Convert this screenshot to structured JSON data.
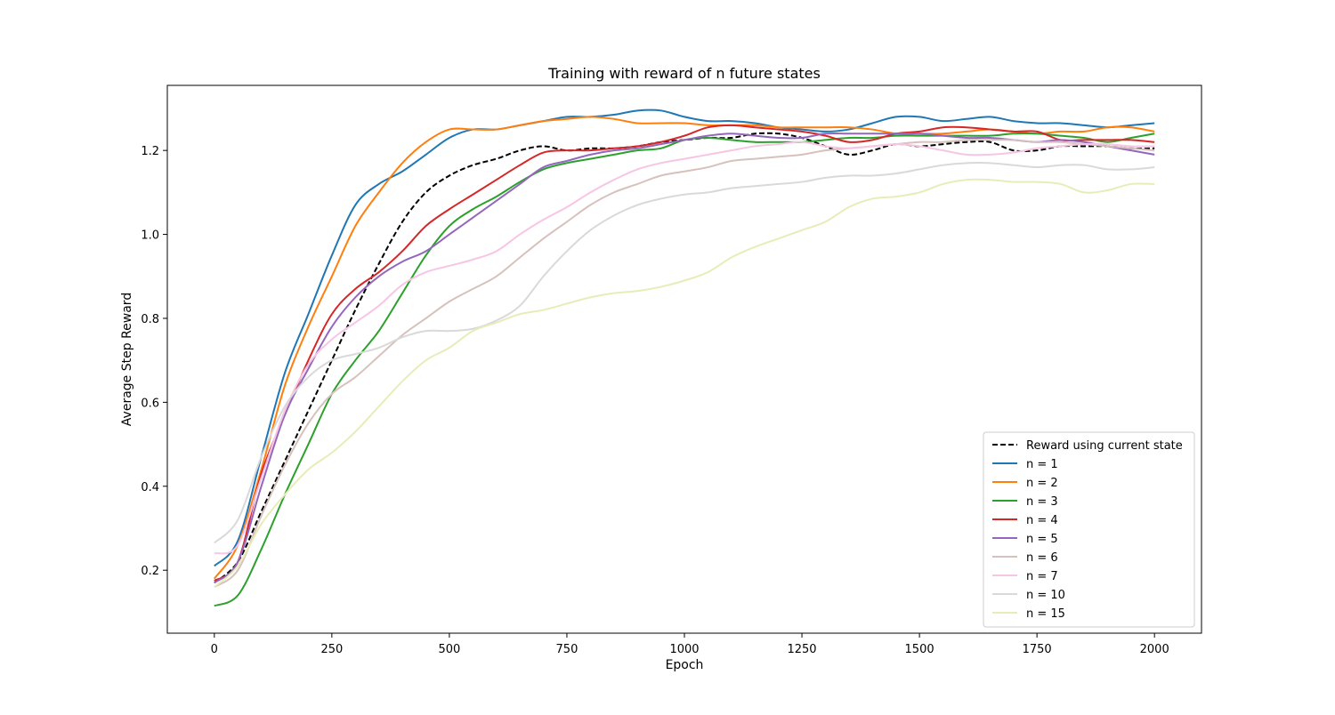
{
  "chart_data": {
    "type": "line",
    "title": "Training with reward of n future states",
    "xlabel": "Epoch",
    "ylabel": "Average Step Reward",
    "xlim": [
      -100,
      2100
    ],
    "ylim": [
      0.05,
      1.355
    ],
    "xticks": [
      0,
      250,
      500,
      750,
      1000,
      1250,
      1500,
      1750,
      2000
    ],
    "yticks": [
      0.2,
      0.4,
      0.6,
      0.8,
      1.0,
      1.2
    ],
    "ytick_labels": [
      "0.2",
      "0.4",
      "0.6",
      "0.8",
      "1.0",
      "1.2"
    ],
    "grid": false,
    "legend_position": "lower right",
    "x": [
      0,
      50,
      100,
      150,
      200,
      250,
      300,
      350,
      400,
      450,
      500,
      550,
      600,
      650,
      700,
      750,
      800,
      850,
      900,
      950,
      1000,
      1050,
      1100,
      1150,
      1200,
      1250,
      1300,
      1350,
      1400,
      1450,
      1500,
      1550,
      1600,
      1650,
      1700,
      1750,
      1800,
      1850,
      1900,
      1950,
      2000
    ],
    "series": [
      {
        "name": "Reward using current state",
        "color": "#000000",
        "dashed": true,
        "values": [
          0.17,
          0.22,
          0.34,
          0.46,
          0.58,
          0.7,
          0.82,
          0.93,
          1.03,
          1.1,
          1.14,
          1.165,
          1.18,
          1.2,
          1.21,
          1.2,
          1.205,
          1.205,
          1.21,
          1.22,
          1.225,
          1.23,
          1.23,
          1.24,
          1.24,
          1.23,
          1.21,
          1.19,
          1.2,
          1.215,
          1.21,
          1.215,
          1.22,
          1.22,
          1.2,
          1.2,
          1.21,
          1.21,
          1.21,
          1.205,
          1.205
        ]
      },
      {
        "name": "n = 1",
        "color": "#1f77b4",
        "dashed": false,
        "values": [
          0.21,
          0.27,
          0.47,
          0.67,
          0.81,
          0.95,
          1.07,
          1.12,
          1.15,
          1.19,
          1.23,
          1.25,
          1.25,
          1.26,
          1.27,
          1.28,
          1.28,
          1.285,
          1.295,
          1.295,
          1.28,
          1.27,
          1.27,
          1.265,
          1.255,
          1.25,
          1.245,
          1.25,
          1.265,
          1.28,
          1.28,
          1.27,
          1.275,
          1.28,
          1.27,
          1.265,
          1.265,
          1.26,
          1.255,
          1.26,
          1.265
        ]
      },
      {
        "name": "n = 2",
        "color": "#ff7f0e",
        "dashed": false,
        "values": [
          0.18,
          0.26,
          0.44,
          0.64,
          0.78,
          0.9,
          1.02,
          1.1,
          1.17,
          1.22,
          1.25,
          1.25,
          1.25,
          1.26,
          1.27,
          1.275,
          1.28,
          1.275,
          1.265,
          1.265,
          1.265,
          1.26,
          1.26,
          1.26,
          1.255,
          1.255,
          1.255,
          1.255,
          1.25,
          1.24,
          1.24,
          1.24,
          1.245,
          1.25,
          1.245,
          1.24,
          1.245,
          1.245,
          1.255,
          1.255,
          1.245
        ]
      },
      {
        "name": "n = 3",
        "color": "#2ca02c",
        "dashed": false,
        "values": [
          0.115,
          0.14,
          0.25,
          0.38,
          0.5,
          0.62,
          0.7,
          0.77,
          0.86,
          0.95,
          1.02,
          1.06,
          1.09,
          1.125,
          1.155,
          1.17,
          1.18,
          1.19,
          1.2,
          1.205,
          1.225,
          1.23,
          1.225,
          1.22,
          1.22,
          1.22,
          1.225,
          1.23,
          1.23,
          1.235,
          1.235,
          1.235,
          1.235,
          1.235,
          1.24,
          1.24,
          1.235,
          1.23,
          1.22,
          1.23,
          1.24
        ]
      },
      {
        "name": "n = 4",
        "color": "#d62728",
        "dashed": false,
        "values": [
          0.175,
          0.22,
          0.43,
          0.57,
          0.7,
          0.81,
          0.87,
          0.91,
          0.96,
          1.02,
          1.06,
          1.095,
          1.13,
          1.165,
          1.195,
          1.2,
          1.2,
          1.205,
          1.21,
          1.22,
          1.235,
          1.255,
          1.26,
          1.255,
          1.25,
          1.245,
          1.235,
          1.22,
          1.225,
          1.24,
          1.245,
          1.255,
          1.255,
          1.25,
          1.245,
          1.245,
          1.225,
          1.225,
          1.225,
          1.225,
          1.22
        ]
      },
      {
        "name": "n = 5",
        "color": "#9467bd",
        "dashed": false,
        "values": [
          0.17,
          0.22,
          0.4,
          0.57,
          0.68,
          0.78,
          0.85,
          0.9,
          0.935,
          0.96,
          1.0,
          1.04,
          1.08,
          1.12,
          1.16,
          1.175,
          1.19,
          1.2,
          1.205,
          1.215,
          1.225,
          1.235,
          1.24,
          1.235,
          1.23,
          1.23,
          1.24,
          1.24,
          1.24,
          1.24,
          1.24,
          1.235,
          1.23,
          1.23,
          1.225,
          1.22,
          1.225,
          1.22,
          1.21,
          1.2,
          1.19
        ]
      },
      {
        "name": "n = 6",
        "color": "#d7c1bd",
        "dashed": false,
        "values": [
          0.16,
          0.2,
          0.33,
          0.45,
          0.55,
          0.62,
          0.66,
          0.71,
          0.76,
          0.8,
          0.84,
          0.87,
          0.9,
          0.945,
          0.99,
          1.03,
          1.07,
          1.1,
          1.12,
          1.14,
          1.15,
          1.16,
          1.175,
          1.18,
          1.185,
          1.19,
          1.2,
          1.205,
          1.21,
          1.215,
          1.22,
          1.22,
          1.225,
          1.225,
          1.225,
          1.22,
          1.22,
          1.215,
          1.21,
          1.205,
          1.2
        ]
      },
      {
        "name": "n = 7",
        "color": "#f6c6e4",
        "dashed": false,
        "values": [
          0.24,
          0.26,
          0.42,
          0.58,
          0.69,
          0.75,
          0.79,
          0.83,
          0.88,
          0.91,
          0.925,
          0.94,
          0.96,
          1.0,
          1.035,
          1.065,
          1.1,
          1.13,
          1.155,
          1.17,
          1.18,
          1.19,
          1.2,
          1.21,
          1.215,
          1.22,
          1.21,
          1.205,
          1.21,
          1.215,
          1.21,
          1.2,
          1.19,
          1.19,
          1.195,
          1.205,
          1.21,
          1.215,
          1.215,
          1.21,
          1.21
        ]
      },
      {
        "name": "n = 10",
        "color": "#d9d9d9",
        "dashed": false,
        "values": [
          0.265,
          0.32,
          0.47,
          0.59,
          0.66,
          0.7,
          0.715,
          0.73,
          0.755,
          0.77,
          0.77,
          0.775,
          0.795,
          0.83,
          0.9,
          0.96,
          1.01,
          1.045,
          1.07,
          1.085,
          1.095,
          1.1,
          1.11,
          1.115,
          1.12,
          1.125,
          1.135,
          1.14,
          1.14,
          1.145,
          1.155,
          1.165,
          1.17,
          1.17,
          1.165,
          1.16,
          1.165,
          1.165,
          1.155,
          1.155,
          1.16
        ]
      },
      {
        "name": "n = 15",
        "color": "#e8ecb8",
        "dashed": false,
        "values": [
          0.16,
          0.21,
          0.31,
          0.38,
          0.44,
          0.48,
          0.53,
          0.59,
          0.65,
          0.7,
          0.73,
          0.77,
          0.79,
          0.81,
          0.82,
          0.835,
          0.85,
          0.86,
          0.865,
          0.875,
          0.89,
          0.91,
          0.945,
          0.97,
          0.99,
          1.01,
          1.03,
          1.065,
          1.085,
          1.09,
          1.1,
          1.12,
          1.13,
          1.13,
          1.125,
          1.125,
          1.12,
          1.1,
          1.105,
          1.12,
          1.12
        ]
      }
    ]
  }
}
